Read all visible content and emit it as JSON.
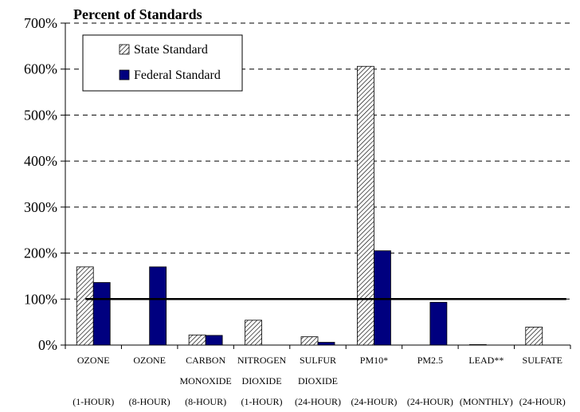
{
  "chart_data": {
    "type": "bar",
    "title": "Percent of Standards",
    "xlabel": "",
    "ylabel": "",
    "ylim": [
      0,
      700
    ],
    "yticks": [
      "0%",
      "100%",
      "200%",
      "300%",
      "400%",
      "500%",
      "600%",
      "700%"
    ],
    "ytick_values": [
      0,
      100,
      200,
      300,
      400,
      500,
      600,
      700
    ],
    "grid": "horizontal dashed",
    "legend_position": "top-left",
    "categories": [
      {
        "line1": "OZONE",
        "line2": "",
        "line3": "(1-HOUR)"
      },
      {
        "line1": "OZONE",
        "line2": "",
        "line3": "(8-HOUR)"
      },
      {
        "line1": "CARBON",
        "line2": "MONOXIDE",
        "line3": "(8-HOUR)"
      },
      {
        "line1": "NITROGEN",
        "line2": "DIOXIDE",
        "line3": "(1-HOUR)"
      },
      {
        "line1": "SULFUR",
        "line2": "DIOXIDE",
        "line3": "(24-HOUR)"
      },
      {
        "line1": "PM10*",
        "line2": "",
        "line3": "(24-HOUR)"
      },
      {
        "line1": "PM2.5",
        "line2": "",
        "line3": "(24-HOUR)"
      },
      {
        "line1": "LEAD**",
        "line2": "",
        "line3": "(MONTHLY)"
      },
      {
        "line1": "SULFATE",
        "line2": "",
        "line3": "(24-HOUR)"
      }
    ],
    "series": [
      {
        "name": "State Standard",
        "pattern": "diagonal-hatch",
        "color": "#7f7f7f",
        "values": [
          170,
          null,
          22,
          54,
          18,
          606,
          null,
          1,
          39
        ]
      },
      {
        "name": "Federal Standard",
        "pattern": "solid",
        "color": "#00007f",
        "values": [
          136,
          170,
          21,
          null,
          6,
          205,
          93,
          null,
          null
        ]
      }
    ],
    "reference_line": {
      "value": 100,
      "color": "#000000"
    }
  }
}
